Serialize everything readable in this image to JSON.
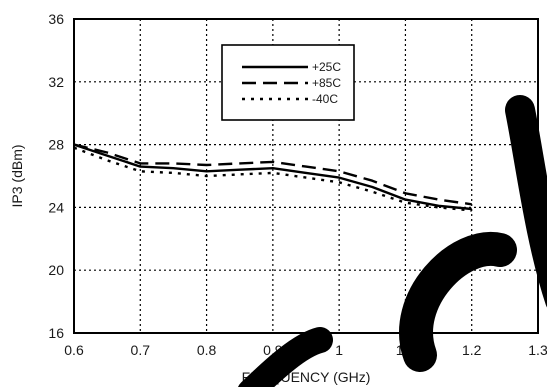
{
  "chart_data": {
    "type": "line",
    "xlabel": "FREQUENCY (GHz)",
    "ylabel": "IP3 (dBm)",
    "xlim": [
      0.6,
      1.3
    ],
    "ylim": [
      16,
      36
    ],
    "xticks": [
      "0.6",
      "0.7",
      "0.8",
      "0.9",
      "1",
      "1.1",
      "1.2",
      "1.3"
    ],
    "yticks": [
      "16",
      "20",
      "24",
      "28",
      "32",
      "36"
    ],
    "grid": "dotted",
    "legend_position": "top-center",
    "series": [
      {
        "name": "+25C",
        "style": "solid",
        "color": "#000000",
        "x": [
          0.6,
          0.65,
          0.7,
          0.75,
          0.8,
          0.85,
          0.9,
          0.95,
          1.0,
          1.05,
          1.1,
          1.15,
          1.2
        ],
        "y": [
          28.0,
          27.3,
          26.6,
          26.5,
          26.3,
          26.4,
          26.5,
          26.2,
          25.9,
          25.3,
          24.5,
          24.1,
          23.9
        ]
      },
      {
        "name": "+85C",
        "style": "dashed",
        "color": "#000000",
        "x": [
          0.6,
          0.65,
          0.7,
          0.75,
          0.8,
          0.85,
          0.9,
          0.95,
          1.0,
          1.05,
          1.1,
          1.15,
          1.2
        ],
        "y": [
          28.0,
          27.5,
          26.8,
          26.8,
          26.7,
          26.8,
          26.9,
          26.6,
          26.3,
          25.7,
          24.9,
          24.5,
          24.2
        ]
      },
      {
        "name": "-40C",
        "style": "dotted",
        "color": "#000000",
        "x": [
          0.6,
          0.65,
          0.7,
          0.75,
          0.8,
          0.85,
          0.9,
          0.95,
          1.0,
          1.05,
          1.1,
          1.15,
          1.2
        ],
        "y": [
          27.8,
          27.0,
          26.3,
          26.2,
          26.0,
          26.1,
          26.2,
          25.9,
          25.6,
          25.0,
          24.3,
          24.0,
          23.8
        ]
      }
    ]
  }
}
